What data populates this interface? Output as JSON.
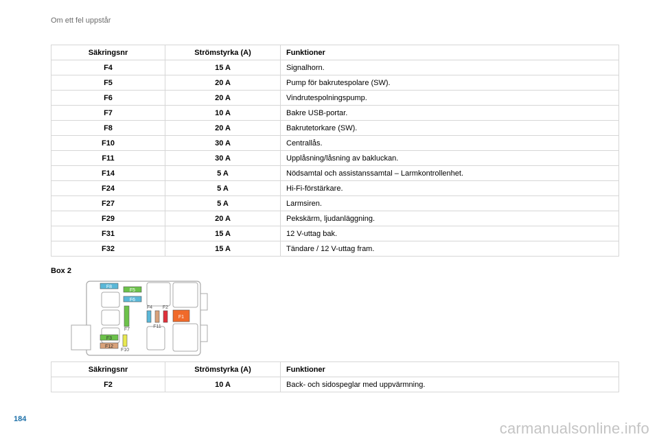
{
  "header": {
    "section_title": "Om ett fel uppstår"
  },
  "table1": {
    "headers": [
      "Säkringsnr",
      "Strömstyrka (A)",
      "Funktioner"
    ],
    "rows": [
      [
        "F4",
        "15 A",
        "Signalhorn."
      ],
      [
        "F5",
        "20 A",
        "Pump för bakrutespolare (SW)."
      ],
      [
        "F6",
        "20 A",
        "Vindrutespolningspump."
      ],
      [
        "F7",
        "10 A",
        "Bakre USB-portar."
      ],
      [
        "F8",
        "20 A",
        "Bakrutetorkare (SW)."
      ],
      [
        "F10",
        "30 A",
        "Centrallås."
      ],
      [
        "F11",
        "30 A",
        "Upplåsning/låsning av bakluckan."
      ],
      [
        "F14",
        "5 A",
        "Nödsamtal och assistanssamtal – Larmkontrollenhet."
      ],
      [
        "F24",
        "5 A",
        "Hi-Fi-förstärkare."
      ],
      [
        "F27",
        "5 A",
        "Larmsiren."
      ],
      [
        "F29",
        "20 A",
        "Pekskärm, ljudanläggning."
      ],
      [
        "F31",
        "15 A",
        "12 V-uttag bak."
      ],
      [
        "F32",
        "15 A",
        "Tändare / 12 V-uttag fram."
      ]
    ]
  },
  "box": {
    "title": "Box 2",
    "labels": {
      "f8": "F8",
      "f5": "F5",
      "f6": "F6",
      "f4": "F4",
      "f2": "F2",
      "f1": "F1",
      "f11": "F11",
      "f7": "F7",
      "f3": "F3",
      "f12": "F12",
      "f10": "F10"
    },
    "colors": {
      "blue": "#5bb8d8",
      "green": "#6cc24a",
      "tan": "#d9a27a",
      "red": "#e0303a",
      "orange": "#f06a2a",
      "yellow": "#e8e850"
    }
  },
  "table2": {
    "headers": [
      "Säkringsnr",
      "Strömstyrka (A)",
      "Funktioner"
    ],
    "rows": [
      [
        "F2",
        "10 A",
        "Back- och sidospeglar med uppvärmning."
      ]
    ]
  },
  "footer": {
    "page_number": "184",
    "watermark": "carmanualsonline.info"
  }
}
